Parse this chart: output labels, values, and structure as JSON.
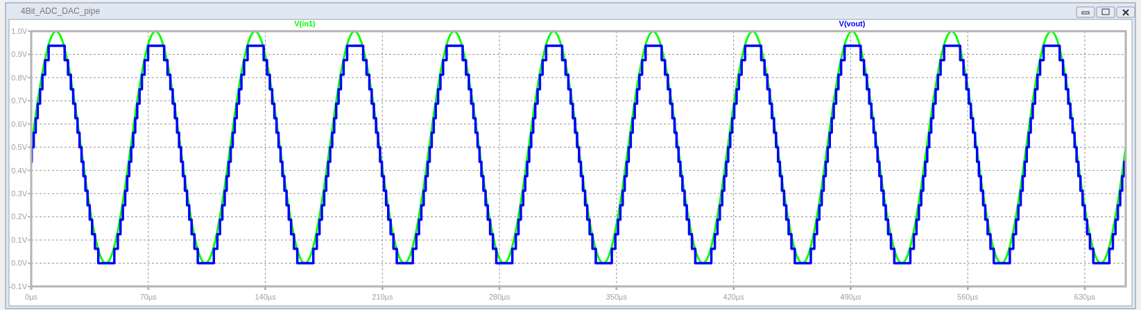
{
  "chart_data": {
    "type": "line",
    "title": "4Bit_ADC_DAC_pipe",
    "xlim": [
      0,
      654.5
    ],
    "ylim": [
      -0.1,
      1.0
    ],
    "xticks": [
      {
        "value": 0,
        "label": "0µs"
      },
      {
        "value": 70,
        "label": "70µs"
      },
      {
        "value": 140,
        "label": "140µs"
      },
      {
        "value": 210,
        "label": "210µs"
      },
      {
        "value": 280,
        "label": "280µs"
      },
      {
        "value": 350,
        "label": "350µs"
      },
      {
        "value": 420,
        "label": "420µs"
      },
      {
        "value": 490,
        "label": "490µs"
      },
      {
        "value": 560,
        "label": "560µs"
      },
      {
        "value": 630,
        "label": "630µs"
      }
    ],
    "yticks": [
      {
        "value": -0.1,
        "label": "-0.1V"
      },
      {
        "value": 0,
        "label": "0.0V"
      },
      {
        "value": 0.1,
        "label": "0.1V"
      },
      {
        "value": 0.2,
        "label": "0.2V"
      },
      {
        "value": 0.3,
        "label": "0.3V"
      },
      {
        "value": 0.4,
        "label": "0.4V"
      },
      {
        "value": 0.5,
        "label": "0.5V"
      },
      {
        "value": 0.6,
        "label": "0.6V"
      },
      {
        "value": 0.7,
        "label": "0.7V"
      },
      {
        "value": 0.8,
        "label": "0.8V"
      },
      {
        "value": 0.9,
        "label": "0.9V"
      },
      {
        "value": 1.0,
        "label": "1.0V"
      }
    ],
    "grid": true,
    "legend": "top",
    "series": [
      {
        "name": "V(in1)",
        "color": "#00ff00",
        "type": "line",
        "x": [
          0,
          3.72,
          7.44,
          11.16,
          14.88,
          18.59,
          22.31,
          26.03,
          29.75,
          33.47,
          37.19,
          40.91,
          44.63,
          48.34,
          52.06,
          55.78,
          59.5,
          63.22,
          66.94,
          70.66,
          74.38,
          78.09,
          81.81,
          85.53,
          89.25,
          92.97,
          96.69,
          100.41,
          104.13,
          107.84,
          111.56,
          115.28,
          119,
          122.72,
          126.44,
          130.16,
          133.88,
          137.59,
          141.31,
          145.03,
          148.75,
          152.47,
          156.19,
          159.91,
          163.63,
          167.34,
          171.06,
          174.78,
          178.5,
          182.22,
          185.94,
          189.66,
          193.38,
          197.09,
          200.81,
          204.53,
          208.25,
          211.97,
          215.69,
          219.41,
          223.13,
          226.84,
          230.56,
          234.28,
          238,
          241.72,
          245.44,
          249.16,
          252.88,
          256.59,
          260.31,
          264.03,
          267.75,
          271.47,
          275.19,
          278.91,
          282.63,
          286.34,
          290.06,
          293.78,
          297.5,
          301.22,
          304.94,
          308.66,
          312.38,
          316.09,
          319.81,
          323.53,
          327.25,
          330.97,
          334.69,
          338.41,
          342.13,
          345.84,
          349.56,
          353.28,
          357,
          360.72,
          364.44,
          368.16,
          371.88,
          375.59,
          379.31,
          383.03,
          386.75,
          390.47,
          394.19,
          397.91,
          401.63,
          405.34,
          409.06,
          412.78,
          416.5,
          420.22,
          423.94,
          427.66,
          431.38,
          435.09,
          438.81,
          442.53,
          446.25,
          449.97,
          453.69,
          457.41,
          461.13,
          464.84,
          468.56,
          472.28,
          476,
          479.72,
          483.44,
          487.16,
          490.88,
          494.59,
          498.31,
          502.03,
          505.75,
          509.47,
          513.19,
          516.91,
          520.63,
          524.34,
          528.06,
          531.78,
          535.5,
          539.22,
          542.94,
          546.66,
          550.38,
          554.09,
          557.81,
          561.53,
          565.25,
          568.97,
          572.69,
          576.41,
          580.13,
          583.84,
          587.56,
          591.28,
          595,
          598.72,
          602.44,
          606.16,
          609.88,
          613.59,
          617.31,
          621.03,
          624.75,
          628.47,
          632.19,
          635.91,
          639.63,
          643.34,
          647.06,
          650.78,
          654.5
        ],
        "values": [
          0.5,
          0.69,
          0.85,
          0.96,
          1,
          0.96,
          0.85,
          0.69,
          0.5,
          0.31,
          0.15,
          0.04,
          0,
          0.04,
          0.15,
          0.31,
          0.5,
          0.69,
          0.85,
          0.96,
          1,
          0.96,
          0.85,
          0.69,
          0.5,
          0.31,
          0.15,
          0.04,
          0,
          0.04,
          0.15,
          0.31,
          0.5,
          0.69,
          0.85,
          0.96,
          1,
          0.96,
          0.85,
          0.69,
          0.5,
          0.31,
          0.15,
          0.04,
          0,
          0.04,
          0.15,
          0.31,
          0.5,
          0.69,
          0.85,
          0.96,
          1,
          0.96,
          0.85,
          0.69,
          0.5,
          0.31,
          0.15,
          0.04,
          0,
          0.04,
          0.15,
          0.31,
          0.5,
          0.69,
          0.85,
          0.96,
          1,
          0.96,
          0.85,
          0.69,
          0.5,
          0.31,
          0.15,
          0.04,
          0,
          0.04,
          0.15,
          0.31,
          0.5,
          0.69,
          0.85,
          0.96,
          1,
          0.96,
          0.85,
          0.69,
          0.5,
          0.31,
          0.15,
          0.04,
          0,
          0.04,
          0.15,
          0.31,
          0.5,
          0.69,
          0.85,
          0.96,
          1,
          0.96,
          0.85,
          0.69,
          0.5,
          0.31,
          0.15,
          0.04,
          0,
          0.04,
          0.15,
          0.31,
          0.5,
          0.69,
          0.85,
          0.96,
          1,
          0.96,
          0.85,
          0.69,
          0.5,
          0.31,
          0.15,
          0.04,
          0,
          0.04,
          0.15,
          0.31,
          0.5,
          0.69,
          0.85,
          0.96,
          1,
          0.96,
          0.85,
          0.69,
          0.5,
          0.31,
          0.15,
          0.04,
          0,
          0.04,
          0.15,
          0.31,
          0.5,
          0.69,
          0.85,
          0.96,
          1,
          0.96,
          0.85,
          0.69,
          0.5,
          0.31,
          0.15,
          0.04,
          0,
          0.04,
          0.15,
          0.31,
          0.5,
          0.69,
          0.85,
          0.96,
          1,
          0.96,
          0.85,
          0.69,
          0.5,
          0.31,
          0.15,
          0.04,
          0,
          0.04,
          0.15,
          0.31,
          0.5
        ]
      },
      {
        "name": "V(vout)",
        "color": "#0000ff",
        "type": "step",
        "x": [
          0,
          0.3,
          1.5,
          2.7,
          3.9,
          5.3,
          6.7,
          8.3,
          10.4,
          20.0,
          22.0,
          23.7,
          25.1,
          26.4,
          27.7,
          28.9,
          30.1,
          31.2,
          32.4,
          33.7,
          35.0,
          36.4,
          38.1,
          40.1,
          49.7,
          51.8,
          53.4,
          54.8,
          56.2,
          57.4,
          58.6,
          59.8,
          61.0,
          62.2,
          63.4,
          64.8,
          66.2,
          67.8,
          69.9,
          79.5,
          81.5,
          83.2,
          84.6,
          85.9,
          87.2,
          88.4,
          89.6,
          90.7,
          91.9,
          93.2,
          94.5,
          95.9,
          97.6,
          99.6,
          109.2,
          111.3,
          112.9,
          114.3,
          115.7,
          116.9,
          118.1,
          119.3,
          120.5,
          121.7,
          122.9,
          124.3,
          125.7,
          127.3,
          129.4,
          139.0,
          141.0,
          142.7,
          144.1,
          145.4,
          146.7,
          147.9,
          149.1,
          150.2,
          151.4,
          152.7,
          154.0,
          155.4,
          157.1,
          159.1,
          168.7,
          170.8,
          172.4,
          173.8,
          175.2,
          176.4,
          177.6,
          178.8,
          180.0,
          181.2,
          182.4,
          183.8,
          185.2,
          186.8,
          188.9,
          198.5,
          200.5,
          202.2,
          203.6,
          204.9,
          206.2,
          207.4,
          208.6,
          209.7,
          210.9,
          212.2,
          213.5,
          214.9,
          216.6,
          218.6,
          228.2,
          230.3,
          231.9,
          233.3,
          234.7,
          235.9,
          237.1,
          238.3,
          239.5,
          240.7,
          241.9,
          243.3,
          244.7,
          246.3,
          248.4,
          258.0,
          260.0,
          261.7,
          263.1,
          264.4,
          265.7,
          266.9,
          268.1,
          269.2,
          270.4,
          271.7,
          273.0,
          274.4,
          276.1,
          278.1,
          287.7,
          289.8,
          291.4,
          292.8,
          294.2,
          295.4,
          296.6,
          297.8,
          299.0,
          300.2,
          301.4,
          302.8,
          304.2,
          305.8,
          307.9,
          317.5,
          319.5,
          321.2,
          322.6,
          323.9,
          325.2,
          326.4,
          327.6,
          328.7,
          329.9,
          331.2,
          332.5,
          333.9,
          335.6,
          337.6,
          347.2,
          349.3,
          350.9,
          352.3,
          353.7,
          354.9,
          356.1,
          357.3,
          358.5,
          359.7,
          360.9,
          362.3,
          363.7,
          365.3,
          367.4,
          377.0,
          379.0,
          380.7,
          382.1,
          383.4,
          384.7,
          385.9,
          387.1,
          388.2,
          389.4,
          390.7,
          392.0,
          393.4,
          395.1,
          397.1,
          406.7,
          408.8,
          410.4,
          411.8,
          413.2,
          414.4,
          415.6,
          416.8,
          418.0,
          419.2,
          420.4,
          421.8,
          423.2,
          424.8,
          426.9,
          436.5,
          438.5,
          440.2,
          441.6,
          442.9,
          444.2,
          445.4,
          446.6,
          447.7,
          448.9,
          450.2,
          451.5,
          452.9,
          454.6,
          456.6,
          466.2,
          468.3,
          469.9,
          471.3,
          472.7,
          473.9,
          475.1,
          476.3,
          477.5,
          478.7,
          479.9,
          481.3,
          482.7,
          484.3,
          486.4,
          496.0,
          498.0,
          499.7,
          501.1,
          502.4,
          503.7,
          504.9,
          506.1,
          507.2,
          508.4,
          509.7,
          511.0,
          512.4,
          514.1,
          516.1,
          525.7,
          527.8,
          529.4,
          530.8,
          532.2,
          533.4,
          534.6,
          535.8,
          537.0,
          538.2,
          539.4,
          540.8,
          542.2,
          543.8,
          545.9,
          555.5,
          557.5,
          559.2,
          560.6,
          561.9,
          563.2,
          564.4,
          565.6,
          566.7,
          567.9,
          569.2,
          570.5,
          571.9,
          573.6,
          575.6,
          585.2,
          587.3,
          588.9,
          590.3,
          591.7,
          592.9,
          594.1,
          595.3,
          596.5,
          597.7,
          598.9,
          600.3,
          601.7,
          603.3,
          605.4,
          615.0,
          617.0,
          618.7,
          620.1,
          621.4,
          622.7,
          623.9,
          625.1,
          626.2,
          627.4,
          628.7,
          630.0,
          631.4,
          633.1,
          635.1,
          644.7,
          646.8,
          648.4,
          649.8,
          651.2,
          652.4,
          653.6,
          654.5
        ],
        "values": [
          0.4375,
          0.5,
          0.5625,
          0.625,
          0.6875,
          0.75,
          0.8125,
          0.875,
          0.9375,
          0.875,
          0.8125,
          0.75,
          0.6875,
          0.625,
          0.5625,
          0.5,
          0.4375,
          0.375,
          0.3125,
          0.25,
          0.1875,
          0.125,
          0.0625,
          0,
          0.0625,
          0.125,
          0.1875,
          0.25,
          0.3125,
          0.375,
          0.4375,
          0.5,
          0.5625,
          0.625,
          0.6875,
          0.75,
          0.8125,
          0.875,
          0.9375,
          0.875,
          0.8125,
          0.75,
          0.6875,
          0.625,
          0.5625,
          0.5,
          0.4375,
          0.375,
          0.3125,
          0.25,
          0.1875,
          0.125,
          0.0625,
          0,
          0.0625,
          0.125,
          0.1875,
          0.25,
          0.3125,
          0.375,
          0.4375,
          0.5,
          0.5625,
          0.625,
          0.6875,
          0.75,
          0.8125,
          0.875,
          0.9375,
          0.875,
          0.8125,
          0.75,
          0.6875,
          0.625,
          0.5625,
          0.5,
          0.4375,
          0.375,
          0.3125,
          0.25,
          0.1875,
          0.125,
          0.0625,
          0,
          0.0625,
          0.125,
          0.1875,
          0.25,
          0.3125,
          0.375,
          0.4375,
          0.5,
          0.5625,
          0.625,
          0.6875,
          0.75,
          0.8125,
          0.875,
          0.9375,
          0.875,
          0.8125,
          0.75,
          0.6875,
          0.625,
          0.5625,
          0.5,
          0.4375,
          0.375,
          0.3125,
          0.25,
          0.1875,
          0.125,
          0.0625,
          0,
          0.0625,
          0.125,
          0.1875,
          0.25,
          0.3125,
          0.375,
          0.4375,
          0.5,
          0.5625,
          0.625,
          0.6875,
          0.75,
          0.8125,
          0.875,
          0.9375,
          0.875,
          0.8125,
          0.75,
          0.6875,
          0.625,
          0.5625,
          0.5,
          0.4375,
          0.375,
          0.3125,
          0.25,
          0.1875,
          0.125,
          0.0625,
          0,
          0.0625,
          0.125,
          0.1875,
          0.25,
          0.3125,
          0.375,
          0.4375,
          0.5,
          0.5625,
          0.625,
          0.6875,
          0.75,
          0.8125,
          0.875,
          0.9375,
          0.875,
          0.8125,
          0.75,
          0.6875,
          0.625,
          0.5625,
          0.5,
          0.4375,
          0.375,
          0.3125,
          0.25,
          0.1875,
          0.125,
          0.0625,
          0,
          0.0625,
          0.125,
          0.1875,
          0.25,
          0.3125,
          0.375,
          0.4375,
          0.5,
          0.5625,
          0.625,
          0.6875,
          0.75,
          0.8125,
          0.875,
          0.9375,
          0.875,
          0.8125,
          0.75,
          0.6875,
          0.625,
          0.5625,
          0.5,
          0.4375,
          0.375,
          0.3125,
          0.25,
          0.1875,
          0.125,
          0.0625,
          0,
          0.0625,
          0.125,
          0.1875,
          0.25,
          0.3125,
          0.375,
          0.4375,
          0.5,
          0.5625,
          0.625,
          0.6875,
          0.75,
          0.8125,
          0.875,
          0.9375,
          0.875,
          0.8125,
          0.75,
          0.6875,
          0.625,
          0.5625,
          0.5,
          0.4375,
          0.375,
          0.3125,
          0.25,
          0.1875,
          0.125,
          0.0625,
          0,
          0.0625,
          0.125,
          0.1875,
          0.25,
          0.3125,
          0.375,
          0.4375,
          0.5,
          0.5625,
          0.625,
          0.6875,
          0.75,
          0.8125,
          0.875,
          0.9375,
          0.875,
          0.8125,
          0.75,
          0.6875,
          0.625,
          0.5625,
          0.5,
          0.4375,
          0.375,
          0.3125,
          0.25,
          0.1875,
          0.125,
          0.0625,
          0,
          0.0625,
          0.125,
          0.1875,
          0.25,
          0.3125,
          0.375,
          0.4375,
          0.5,
          0.5625,
          0.625,
          0.6875,
          0.75,
          0.8125,
          0.875,
          0.9375,
          0.875,
          0.8125,
          0.75,
          0.6875,
          0.625,
          0.5625,
          0.5,
          0.4375,
          0.375,
          0.3125,
          0.25,
          0.1875,
          0.125,
          0.0625,
          0,
          0.0625,
          0.125,
          0.1875,
          0.25,
          0.3125,
          0.375,
          0.4375,
          0.5,
          0.5625,
          0.625,
          0.6875,
          0.75,
          0.8125,
          0.875,
          0.9375,
          0.875,
          0.8125,
          0.75,
          0.6875,
          0.625,
          0.5625,
          0.5,
          0.4375,
          0.375,
          0.3125,
          0.25,
          0.1875,
          0.125,
          0.0625,
          0,
          0.0625,
          0.125,
          0.1875,
          0.25,
          0.3125,
          0.375,
          0.4375,
          0.4375
        ]
      }
    ]
  }
}
